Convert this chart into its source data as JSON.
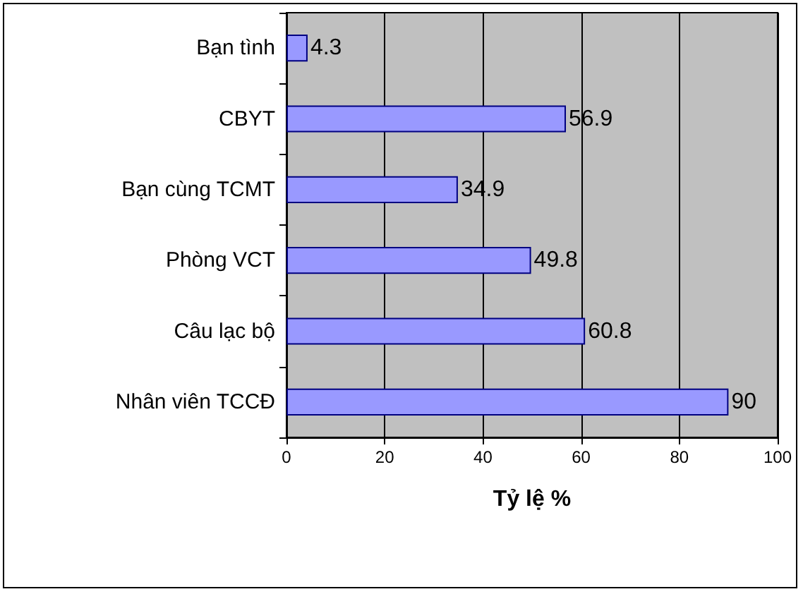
{
  "chart_data": {
    "type": "bar",
    "orientation": "horizontal",
    "xlabel": "Tỷ lệ %",
    "categories": [
      "Bạn tình",
      "CBYT",
      "Bạn cùng TCMT",
      "Phòng VCT",
      "Câu lạc bộ",
      "Nhân viên TCCĐ"
    ],
    "values": [
      4.3,
      56.9,
      34.9,
      49.8,
      60.8,
      90
    ],
    "color": "#9999ff",
    "xlim": [
      0,
      100
    ],
    "xticks": [
      0,
      20,
      40,
      60,
      80,
      100
    ],
    "grid": "x",
    "data_labels": true
  }
}
